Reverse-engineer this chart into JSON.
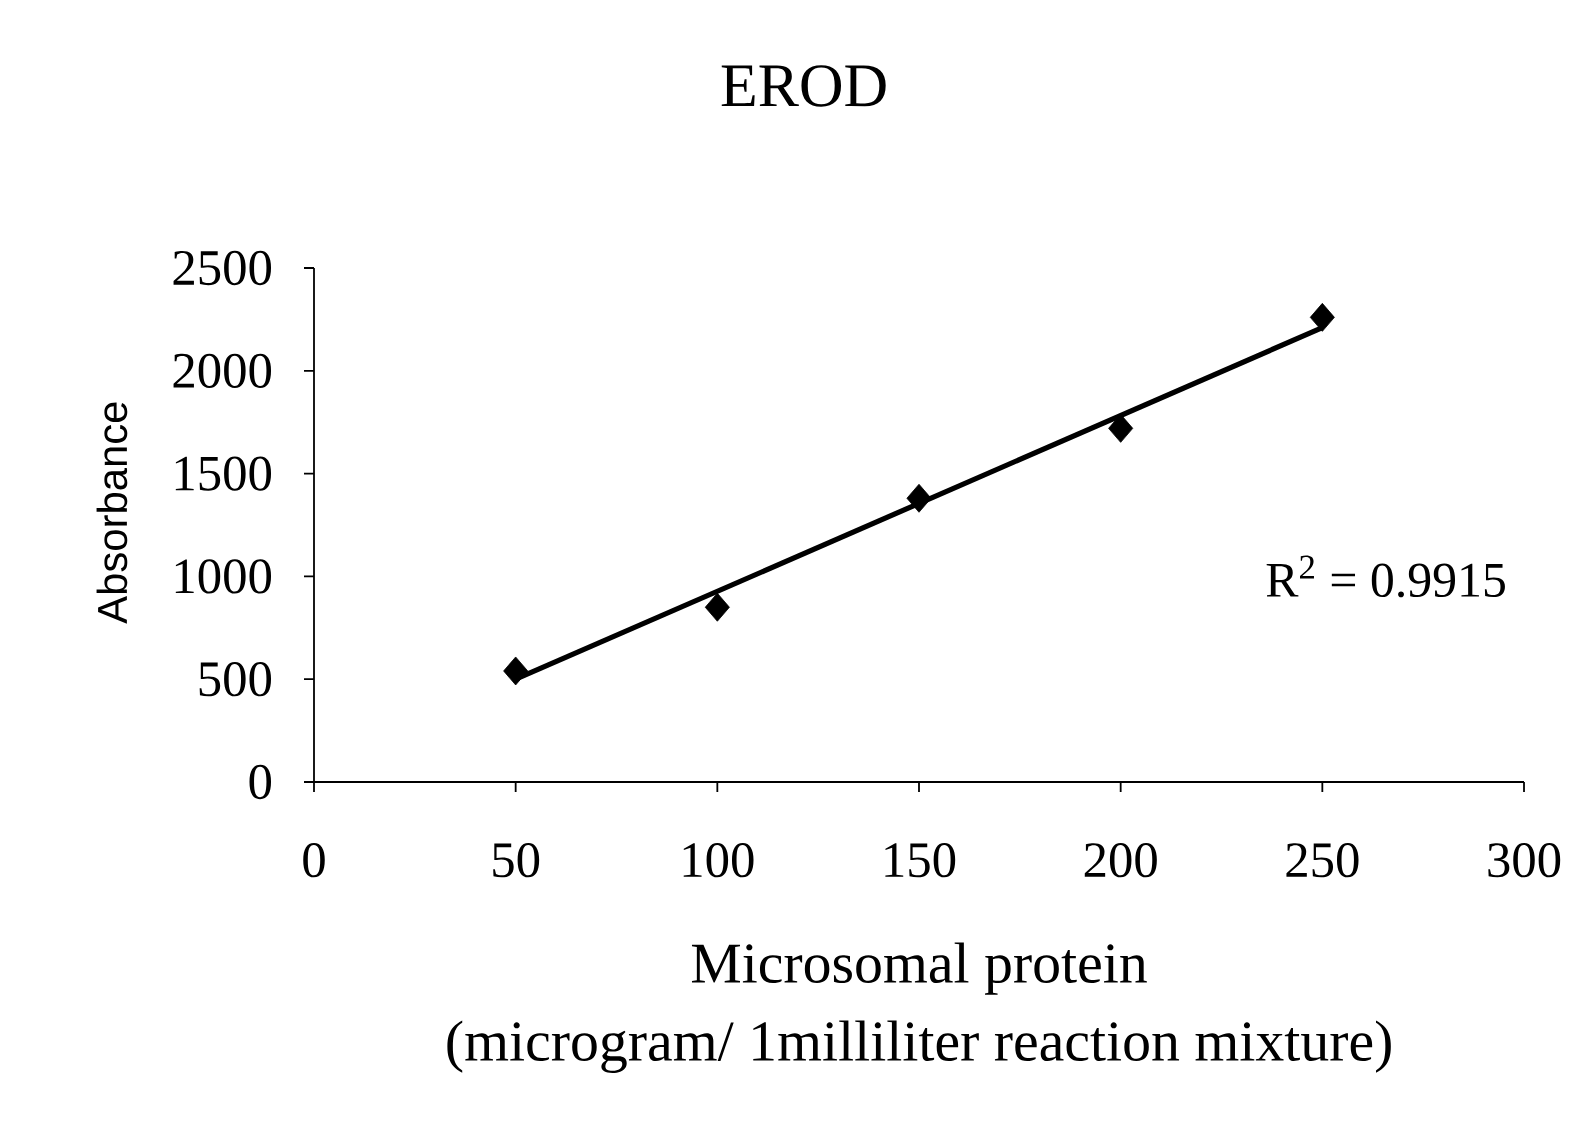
{
  "chart_data": {
    "type": "scatter",
    "title": "EROD",
    "xlabel": "Microsomal protein (microgram/ 1milliliter reaction mixture)",
    "ylabel": "Absorbance",
    "x": [
      50,
      100,
      150,
      200,
      250
    ],
    "series": [
      {
        "color": "#000000",
        "marker": "diamond",
        "values": [
          540,
          850,
          1380,
          1720,
          2260
        ]
      },
      {
        "type": "line",
        "color": "#000000",
        "marker": "none",
        "line_style": "solid",
        "x": [
          50,
          250
        ],
        "values": [
          500,
          2210
        ]
      }
    ],
    "xlim": [
      0,
      300
    ],
    "ylim": [
      0,
      2500
    ],
    "xticks": [
      0,
      50,
      100,
      150,
      200,
      250,
      300
    ],
    "yticks": [
      0,
      500,
      1000,
      1500,
      2000,
      2500
    ],
    "annotations": [
      "R$^{2}$ = 0.9915"
    ]
  }
}
